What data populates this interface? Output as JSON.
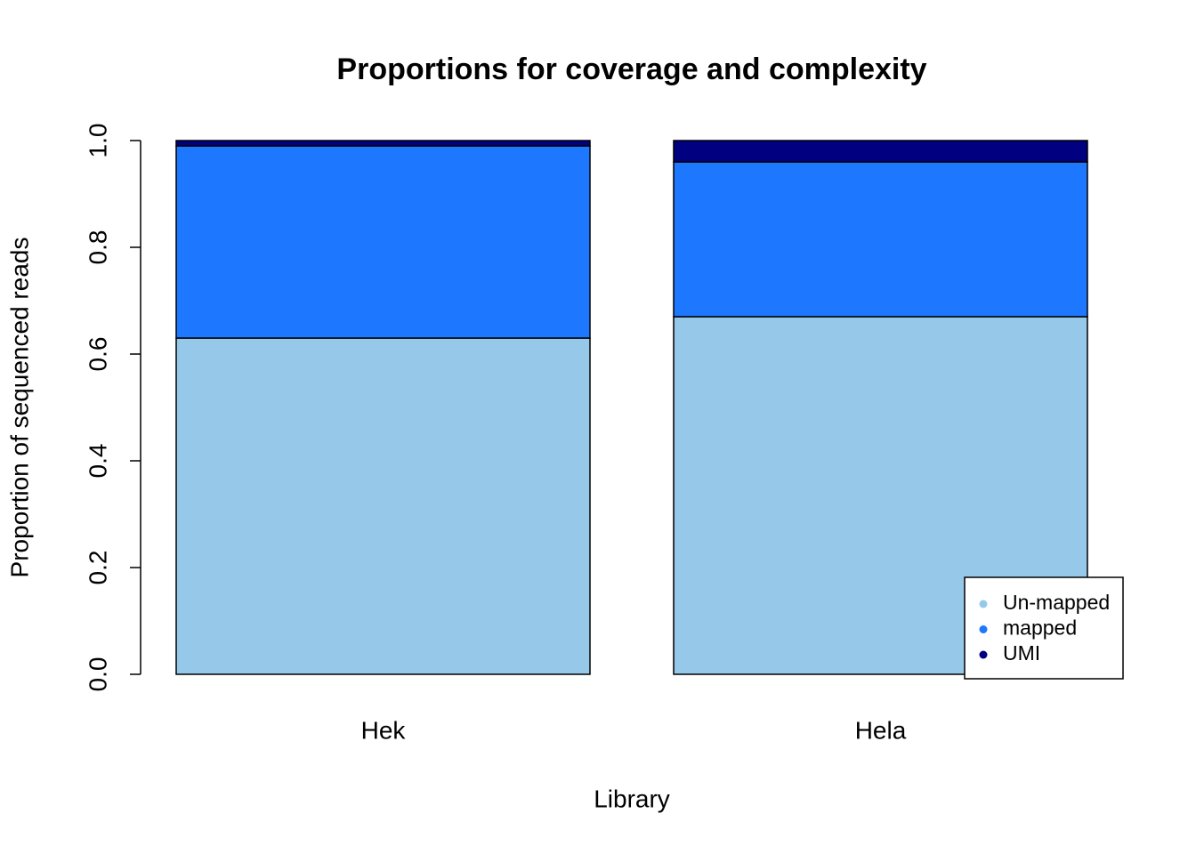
{
  "chart_data": {
    "type": "stacked_bar",
    "title": "Proportions for coverage and complexity",
    "x_label": "Library",
    "y_label": "Proportion of sequenced reads",
    "categories": [
      "Hek",
      "Hela"
    ],
    "series": [
      {
        "name": "Un-mapped",
        "color": "#96c8ea",
        "values": [
          0.63,
          0.67
        ]
      },
      {
        "name": "mapped",
        "color": "#1e78ff",
        "values": [
          0.36,
          0.29
        ]
      },
      {
        "name": "UMI",
        "color": "#000080",
        "values": [
          0.01,
          0.04
        ]
      }
    ],
    "ylim": [
      0,
      1
    ],
    "yticks": [
      {
        "value": 0,
        "label": "0.0"
      },
      0.2,
      0.4,
      0.6,
      0.8,
      {
        "value": 1,
        "label": "1.0"
      }
    ],
    "legend": "bottomright"
  }
}
